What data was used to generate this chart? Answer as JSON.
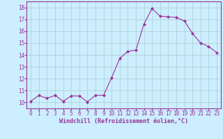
{
  "x": [
    0,
    1,
    2,
    3,
    4,
    5,
    6,
    7,
    8,
    9,
    10,
    11,
    12,
    13,
    14,
    15,
    16,
    17,
    18,
    19,
    20,
    21,
    22,
    23
  ],
  "y": [
    10.1,
    10.6,
    10.35,
    10.6,
    10.1,
    10.55,
    10.55,
    10.05,
    10.6,
    10.6,
    12.1,
    13.7,
    14.3,
    14.4,
    16.6,
    17.9,
    17.25,
    17.2,
    17.15,
    16.85,
    15.8,
    15.0,
    14.7,
    14.2
  ],
  "line_color": "#993399",
  "marker": "D",
  "marker_size": 2.0,
  "bg_color": "#cceeff",
  "grid_color": "#aacccc",
  "xlabel": "Windchill (Refroidissement éolien,°C)",
  "xlabel_fontsize": 6.0,
  "tick_fontsize": 5.5,
  "ylim": [
    9.5,
    18.5
  ],
  "yticks": [
    10,
    11,
    12,
    13,
    14,
    15,
    16,
    17,
    18
  ],
  "xlim": [
    -0.5,
    23.5
  ],
  "xticks": [
    0,
    1,
    2,
    3,
    4,
    5,
    6,
    7,
    8,
    9,
    10,
    11,
    12,
    13,
    14,
    15,
    16,
    17,
    18,
    19,
    20,
    21,
    22,
    23
  ]
}
